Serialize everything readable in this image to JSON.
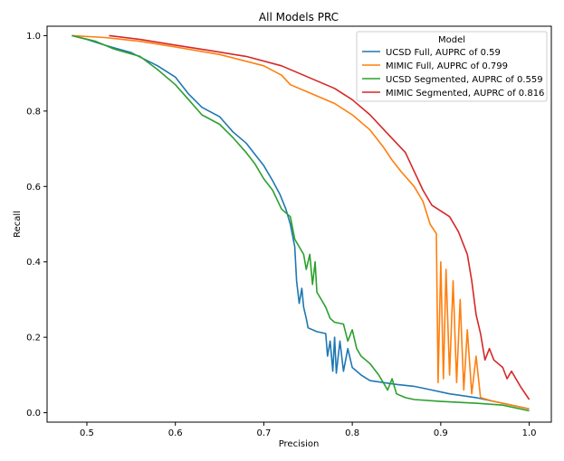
{
  "chart_data": {
    "type": "line",
    "title": "All Models PRC",
    "xlabel": "Precision",
    "ylabel": "Recall",
    "xlim": [
      0.455,
      1.025
    ],
    "ylim": [
      -0.025,
      1.025
    ],
    "xticks": [
      "0.5",
      "0.6",
      "0.7",
      "0.8",
      "0.9",
      "1.0"
    ],
    "xtick_values": [
      0.5,
      0.6,
      0.7,
      0.8,
      0.9,
      1.0
    ],
    "yticks": [
      "0.0",
      "0.2",
      "0.4",
      "0.6",
      "0.8",
      "1.0"
    ],
    "ytick_values": [
      0.0,
      0.2,
      0.4,
      0.6,
      0.8,
      1.0
    ],
    "grid": false,
    "legend": {
      "title": "Model",
      "placement": "top-right"
    },
    "series": [
      {
        "name": "UCSD Full, AUPRC of 0.59",
        "color": "#1f77b4",
        "points": [
          [
            0.483,
            1.0
          ],
          [
            0.5,
            0.99
          ],
          [
            0.52,
            0.975
          ],
          [
            0.55,
            0.955
          ],
          [
            0.58,
            0.92
          ],
          [
            0.6,
            0.89
          ],
          [
            0.615,
            0.845
          ],
          [
            0.63,
            0.81
          ],
          [
            0.65,
            0.785
          ],
          [
            0.665,
            0.745
          ],
          [
            0.68,
            0.715
          ],
          [
            0.69,
            0.685
          ],
          [
            0.7,
            0.655
          ],
          [
            0.71,
            0.615
          ],
          [
            0.718,
            0.58
          ],
          [
            0.725,
            0.54
          ],
          [
            0.73,
            0.5
          ],
          [
            0.735,
            0.44
          ],
          [
            0.737,
            0.35
          ],
          [
            0.74,
            0.29
          ],
          [
            0.743,
            0.33
          ],
          [
            0.745,
            0.28
          ],
          [
            0.748,
            0.25
          ],
          [
            0.75,
            0.225
          ],
          [
            0.76,
            0.215
          ],
          [
            0.77,
            0.21
          ],
          [
            0.772,
            0.15
          ],
          [
            0.775,
            0.19
          ],
          [
            0.778,
            0.11
          ],
          [
            0.78,
            0.2
          ],
          [
            0.782,
            0.105
          ],
          [
            0.786,
            0.19
          ],
          [
            0.79,
            0.11
          ],
          [
            0.795,
            0.17
          ],
          [
            0.8,
            0.12
          ],
          [
            0.81,
            0.1
          ],
          [
            0.82,
            0.085
          ],
          [
            0.85,
            0.075
          ],
          [
            0.87,
            0.07
          ],
          [
            0.89,
            0.06
          ],
          [
            0.91,
            0.05
          ],
          [
            0.94,
            0.04
          ],
          [
            0.97,
            0.025
          ],
          [
            1.0,
            0.01
          ]
        ]
      },
      {
        "name": "MIMIC Full, AUPRC of 0.799",
        "color": "#ff7f0e",
        "points": [
          [
            0.483,
            1.0
          ],
          [
            0.52,
            0.995
          ],
          [
            0.56,
            0.985
          ],
          [
            0.6,
            0.97
          ],
          [
            0.65,
            0.95
          ],
          [
            0.7,
            0.92
          ],
          [
            0.72,
            0.895
          ],
          [
            0.73,
            0.87
          ],
          [
            0.75,
            0.85
          ],
          [
            0.78,
            0.82
          ],
          [
            0.8,
            0.79
          ],
          [
            0.82,
            0.75
          ],
          [
            0.835,
            0.705
          ],
          [
            0.845,
            0.67
          ],
          [
            0.855,
            0.64
          ],
          [
            0.87,
            0.6
          ],
          [
            0.88,
            0.56
          ],
          [
            0.888,
            0.5
          ],
          [
            0.895,
            0.475
          ],
          [
            0.897,
            0.08
          ],
          [
            0.9,
            0.4
          ],
          [
            0.903,
            0.09
          ],
          [
            0.906,
            0.38
          ],
          [
            0.91,
            0.1
          ],
          [
            0.914,
            0.35
          ],
          [
            0.918,
            0.08
          ],
          [
            0.922,
            0.3
          ],
          [
            0.926,
            0.06
          ],
          [
            0.93,
            0.22
          ],
          [
            0.935,
            0.05
          ],
          [
            0.94,
            0.15
          ],
          [
            0.945,
            0.04
          ],
          [
            0.96,
            0.03
          ],
          [
            0.98,
            0.02
          ],
          [
            1.0,
            0.01
          ]
        ]
      },
      {
        "name": "UCSD Segmented, AUPRC of 0.559",
        "color": "#2ca02c",
        "points": [
          [
            0.483,
            1.0
          ],
          [
            0.51,
            0.985
          ],
          [
            0.53,
            0.965
          ],
          [
            0.56,
            0.945
          ],
          [
            0.58,
            0.91
          ],
          [
            0.6,
            0.87
          ],
          [
            0.615,
            0.83
          ],
          [
            0.63,
            0.79
          ],
          [
            0.65,
            0.765
          ],
          [
            0.665,
            0.73
          ],
          [
            0.68,
            0.69
          ],
          [
            0.69,
            0.66
          ],
          [
            0.7,
            0.62
          ],
          [
            0.71,
            0.59
          ],
          [
            0.72,
            0.54
          ],
          [
            0.73,
            0.52
          ],
          [
            0.735,
            0.46
          ],
          [
            0.74,
            0.44
          ],
          [
            0.745,
            0.42
          ],
          [
            0.748,
            0.38
          ],
          [
            0.752,
            0.42
          ],
          [
            0.755,
            0.34
          ],
          [
            0.758,
            0.4
          ],
          [
            0.76,
            0.32
          ],
          [
            0.765,
            0.3
          ],
          [
            0.77,
            0.28
          ],
          [
            0.775,
            0.25
          ],
          [
            0.78,
            0.24
          ],
          [
            0.79,
            0.235
          ],
          [
            0.795,
            0.19
          ],
          [
            0.8,
            0.22
          ],
          [
            0.805,
            0.17
          ],
          [
            0.81,
            0.15
          ],
          [
            0.82,
            0.13
          ],
          [
            0.83,
            0.1
          ],
          [
            0.835,
            0.08
          ],
          [
            0.84,
            0.06
          ],
          [
            0.845,
            0.09
          ],
          [
            0.85,
            0.05
          ],
          [
            0.86,
            0.04
          ],
          [
            0.87,
            0.035
          ],
          [
            0.9,
            0.03
          ],
          [
            0.94,
            0.025
          ],
          [
            0.97,
            0.02
          ],
          [
            1.0,
            0.005
          ]
        ]
      },
      {
        "name": "MIMIC Segmented, AUPRC of 0.816",
        "color": "#d62728",
        "points": [
          [
            0.525,
            1.0
          ],
          [
            0.56,
            0.99
          ],
          [
            0.6,
            0.975
          ],
          [
            0.64,
            0.96
          ],
          [
            0.68,
            0.945
          ],
          [
            0.72,
            0.92
          ],
          [
            0.75,
            0.89
          ],
          [
            0.78,
            0.86
          ],
          [
            0.8,
            0.83
          ],
          [
            0.82,
            0.79
          ],
          [
            0.84,
            0.74
          ],
          [
            0.86,
            0.69
          ],
          [
            0.87,
            0.64
          ],
          [
            0.88,
            0.59
          ],
          [
            0.89,
            0.55
          ],
          [
            0.91,
            0.52
          ],
          [
            0.92,
            0.48
          ],
          [
            0.93,
            0.42
          ],
          [
            0.935,
            0.35
          ],
          [
            0.94,
            0.26
          ],
          [
            0.945,
            0.21
          ],
          [
            0.95,
            0.14
          ],
          [
            0.955,
            0.17
          ],
          [
            0.96,
            0.14
          ],
          [
            0.97,
            0.12
          ],
          [
            0.975,
            0.09
          ],
          [
            0.98,
            0.11
          ],
          [
            0.99,
            0.07
          ],
          [
            1.0,
            0.035
          ]
        ]
      }
    ]
  }
}
